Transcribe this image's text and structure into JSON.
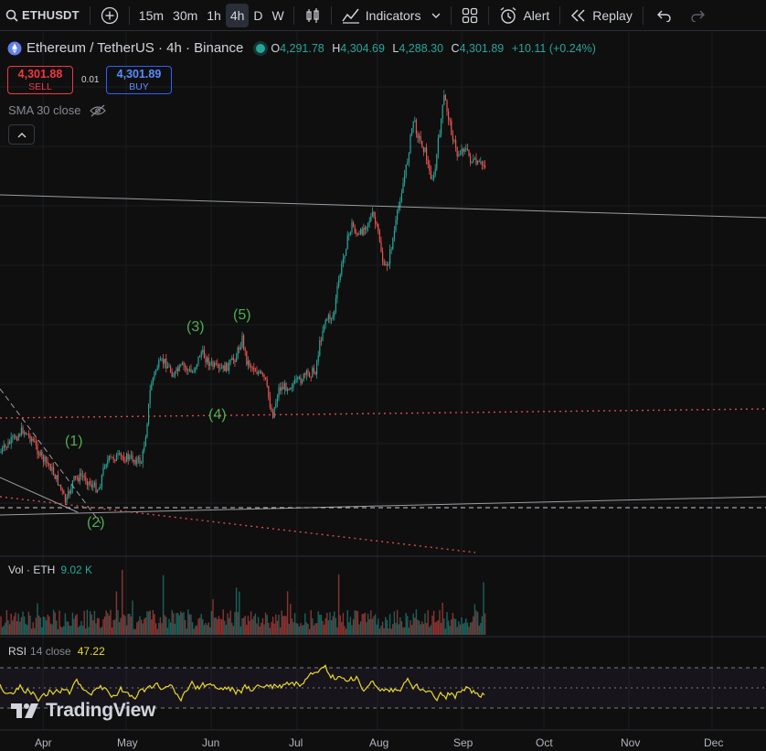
{
  "toolbar": {
    "symbol": "ETHUSDT",
    "timeframes": [
      "15m",
      "30m",
      "1h",
      "4h",
      "D",
      "W"
    ],
    "active_timeframe": "4h",
    "indicators_label": "Indicators",
    "alert_label": "Alert",
    "replay_label": "Replay"
  },
  "legend": {
    "title": "Ethereum / TetherUS · 4h · Binance",
    "o_label": "O",
    "o_value": "4,291.78",
    "h_label": "H",
    "h_value": "4,304.69",
    "l_label": "L",
    "l_value": "4,288.30",
    "c_label": "C",
    "c_value": "4,301.89",
    "change": "+10.11 (+0.24%)"
  },
  "trade": {
    "sell_price": "4,301.88",
    "sell_label": "SELL",
    "spread": "0.01",
    "buy_price": "4,301.89",
    "buy_label": "BUY"
  },
  "sma_label": "SMA 30 close",
  "waves": [
    "(1)",
    "(2)",
    "(3)",
    "(4)",
    "(5)"
  ],
  "volume": {
    "label": "Vol · ETH",
    "value": "9.02 K"
  },
  "rsi": {
    "label": "RSI",
    "params": "14 close",
    "value": "47.22"
  },
  "x_axis": [
    "Apr",
    "May",
    "Jun",
    "Jul",
    "Aug",
    "Sep",
    "Oct",
    "Nov",
    "Dec"
  ],
  "brand": "TradingView",
  "colors": {
    "up": "#26a69a",
    "down": "#ef5350",
    "rsi": "#e8d82b",
    "wave": "#4caf50",
    "background": "#0f0f0f"
  }
}
